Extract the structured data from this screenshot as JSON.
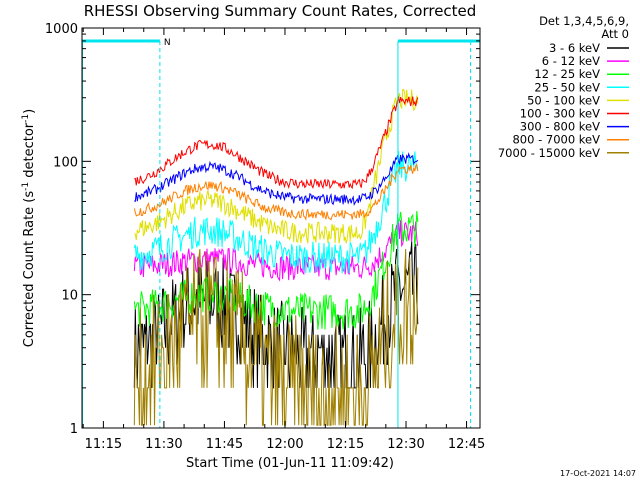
{
  "chart_data": {
    "type": "line",
    "title": "RHESSI Observing Summary Count Rates, Corrected",
    "xlabel": "Start Time (01-Jun-11 11:09:42)",
    "ylabel_main": "Corrected Count Rate (s",
    "ylabel_sup1": "-1",
    "ylabel_mid": " detector",
    "ylabel_sup2": "-1",
    "ylabel_end": ")",
    "y_scale": "log",
    "ylim": [
      1,
      1000
    ],
    "xlim": [
      "11:09:42",
      "12:48:20"
    ],
    "x_ticks": [
      "11:15",
      "11:30",
      "11:45",
      "12:00",
      "12:15",
      "12:30",
      "12:45"
    ],
    "y_ticks": [
      "1",
      "10",
      "100",
      "1000"
    ],
    "grid": false,
    "legend_position": "top-right",
    "legend_header_line1": "Det 1,3,4,5,6,9,",
    "legend_header_line2": "Att 0",
    "series": [
      {
        "name": "3 - 6 keV",
        "color": "#000000"
      },
      {
        "name": "6 - 12 keV",
        "color": "#ff00ff"
      },
      {
        "name": "12 - 25 keV",
        "color": "#00ff00"
      },
      {
        "name": "25 - 50 keV",
        "color": "#00ffff"
      },
      {
        "name": "50 - 100 keV",
        "color": "#e0e000"
      },
      {
        "name": "100 - 300 keV",
        "color": "#ff0000"
      },
      {
        "name": "300 - 800 keV",
        "color": "#0000ff"
      },
      {
        "name": "800 - 7000 keV",
        "color": "#ff8000"
      },
      {
        "name": "7000 - 15000 keV",
        "color": "#a08000"
      }
    ],
    "night_bars": [
      {
        "start": "11:09:42",
        "end": "11:29:00",
        "label": "N"
      },
      {
        "start": "12:28:00",
        "end": "12:48:20",
        "label": ""
      }
    ],
    "marker_lines": [
      "11:29:00",
      "12:28:00",
      "12:46:00"
    ],
    "timestamp": "17-Oct-2021 14:07"
  }
}
